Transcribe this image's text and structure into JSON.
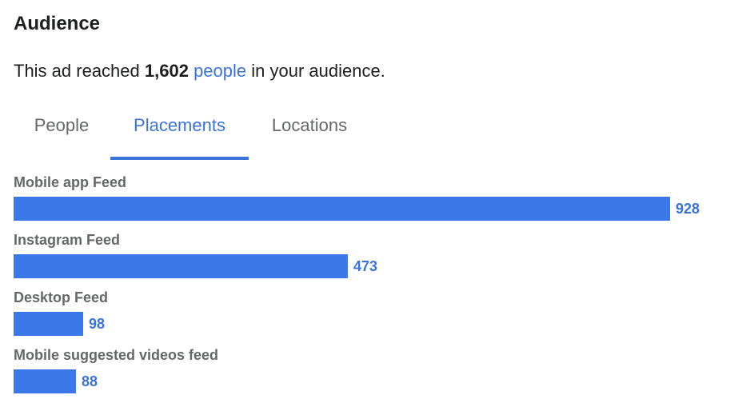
{
  "header": {
    "title": "Audience"
  },
  "reach": {
    "prefix": "This ad reached ",
    "count": "1,602",
    "link_text": "people",
    "suffix": " in your audience."
  },
  "tabs": [
    {
      "label": "People",
      "active": false
    },
    {
      "label": "Placements",
      "active": true
    },
    {
      "label": "Locations",
      "active": false
    }
  ],
  "placements": [
    {
      "label": "Mobile app Feed",
      "value": 928
    },
    {
      "label": "Instagram Feed",
      "value": 473
    },
    {
      "label": "Desktop Feed",
      "value": 98
    },
    {
      "label": "Mobile suggested videos feed",
      "value": 88
    }
  ],
  "colors": {
    "accent": "#3b74d8",
    "bar": "#3b78e7",
    "muted": "#65676b"
  }
}
